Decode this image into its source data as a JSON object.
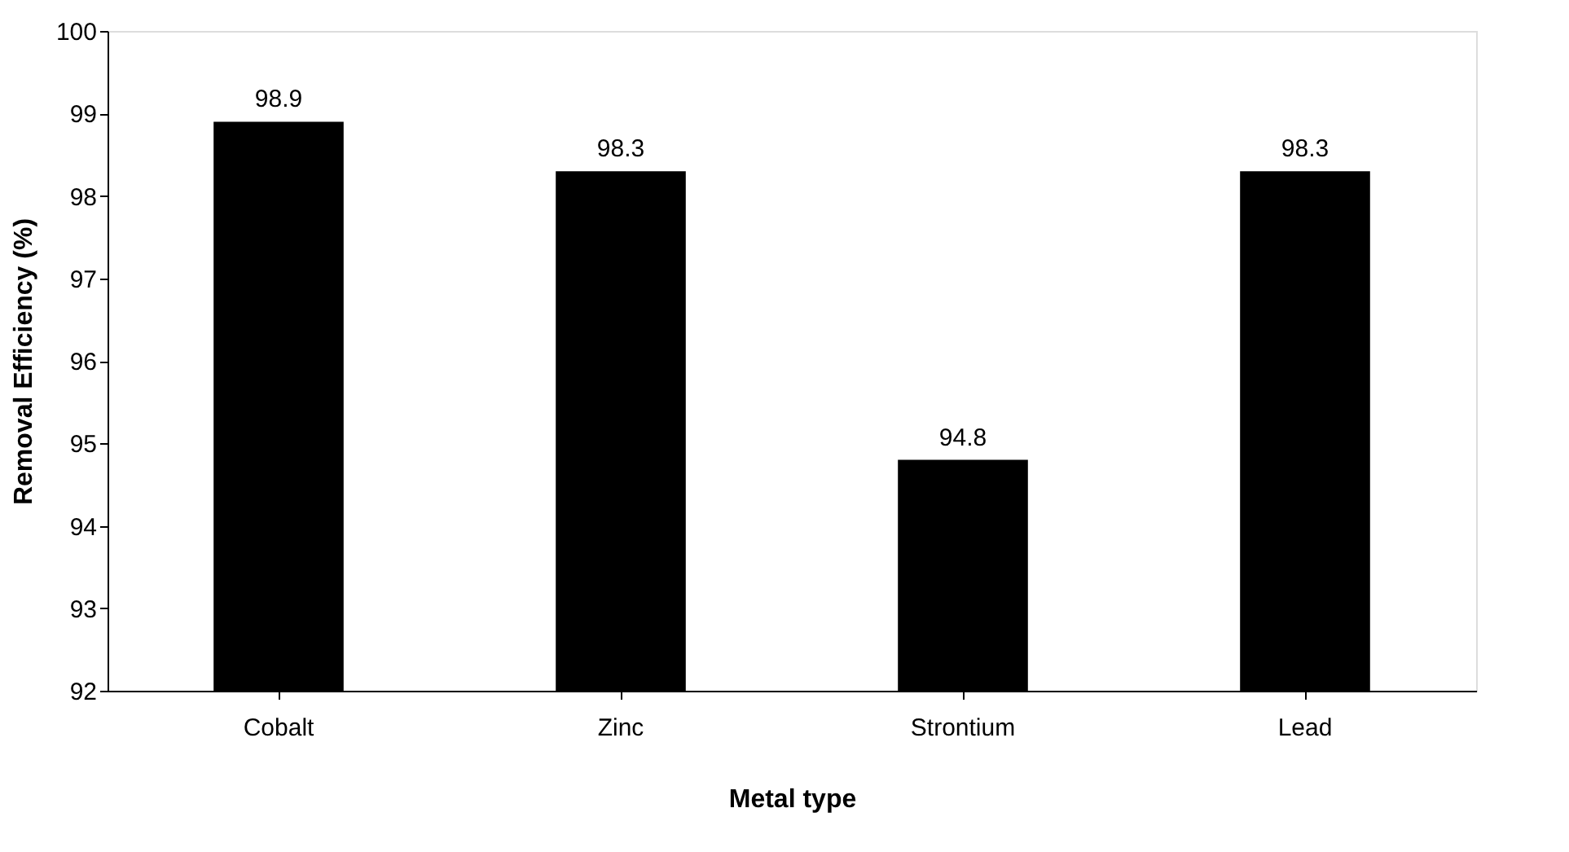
{
  "chart_data": {
    "type": "bar",
    "xlabel": "Metal type",
    "ylabel": "Removal Efficiency (%)",
    "categories": [
      "Cobalt",
      "Zinc",
      "Strontium",
      "Lead"
    ],
    "values": [
      98.9,
      98.3,
      94.8,
      98.3
    ],
    "color": "#000000",
    "ylim": [
      92,
      100
    ],
    "yticks": [
      92,
      93,
      94,
      95,
      96,
      97,
      98,
      99,
      100
    ],
    "data_labels": true,
    "grid": false
  }
}
